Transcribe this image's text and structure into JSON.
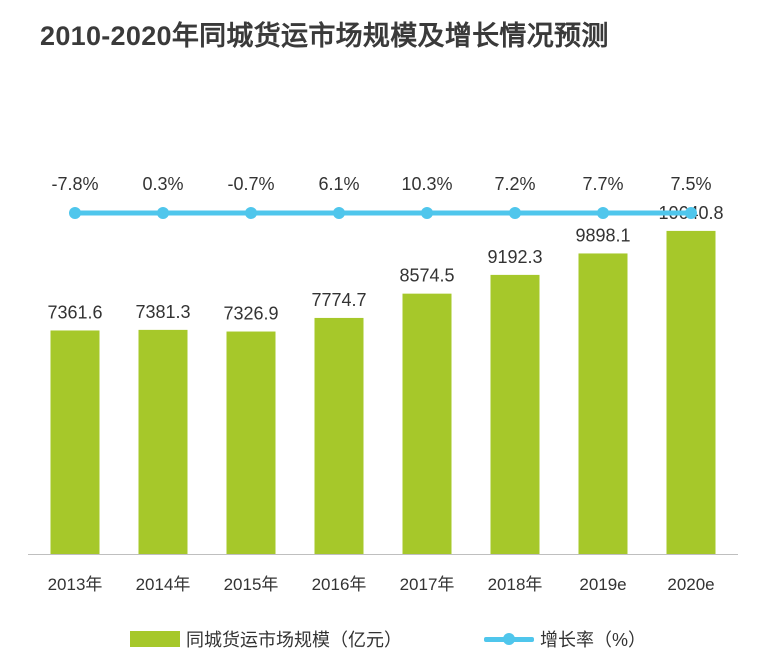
{
  "title": "2010-2020年同城货运市场规模及增长情况预测",
  "colors": {
    "bar": "#a6c82a",
    "line": "#4fc6ec",
    "axis": "#bfbfbf",
    "text": "#333333"
  },
  "legend": {
    "bar_label": "同城货运市场规模（亿元）",
    "line_label": "增长率（%）"
  },
  "chart_data": {
    "type": "bar",
    "title": "2010-2020年同城货运市场规模及增长情况预测",
    "categories": [
      "2013年",
      "2014年",
      "2015年",
      "2016年",
      "2017年",
      "2018年",
      "2019e",
      "2020e"
    ],
    "series": [
      {
        "name": "同城货运市场规模（亿元）",
        "type": "bar",
        "values": [
          7361.6,
          7381.3,
          7326.9,
          7774.7,
          8574.5,
          9192.3,
          9898.1,
          10640.8
        ],
        "labels": [
          "7361.6",
          "7381.3",
          "7326.9",
          "7774.7",
          "8574.5",
          "9192.3",
          "9898.1",
          "10640.8"
        ]
      },
      {
        "name": "增长率（%）",
        "type": "line",
        "values": [
          -7.8,
          0.3,
          -0.7,
          6.1,
          10.3,
          7.2,
          7.7,
          7.5
        ],
        "labels": [
          "-7.8%",
          "0.3%",
          "-0.7%",
          "6.1%",
          "10.3%",
          "7.2%",
          "7.7%",
          "7.5%"
        ]
      }
    ],
    "ylim": [
      0,
      11000
    ],
    "grid": false,
    "legend_position": "bottom"
  }
}
